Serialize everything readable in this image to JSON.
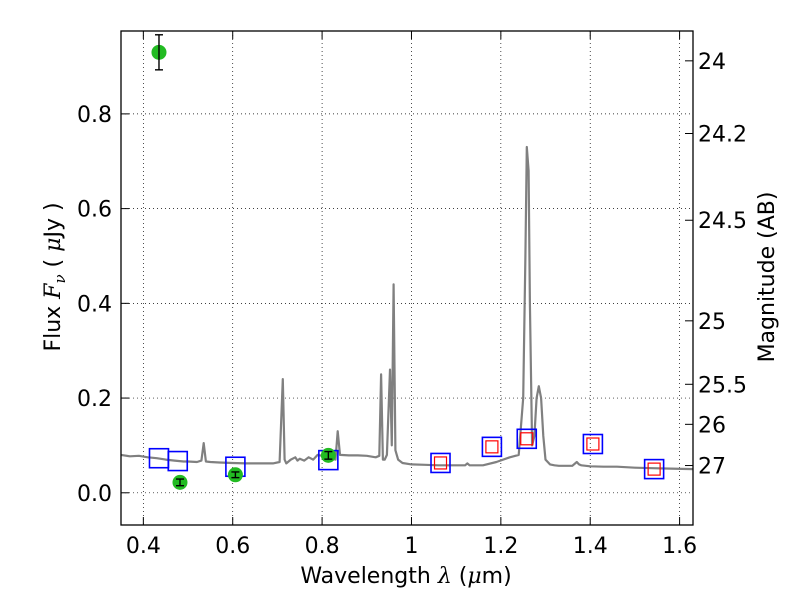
{
  "chart_data": {
    "type": "line",
    "xlabel": {
      "prefix": "Wavelength  ",
      "symbol": "λ",
      "open": " (",
      "unit": "μ",
      "suffix": "m)"
    },
    "ylabel": {
      "prefix": "Flux  ",
      "symbol": "F",
      "sub": "ν",
      "open": "  ( ",
      "unit": "μ",
      "suffix": "Jy )"
    },
    "y2label": "Magnitude (AB)",
    "xlim": [
      0.35,
      1.63
    ],
    "ylim": [
      -0.068,
      0.975
    ],
    "grid": true,
    "x_ticks": [
      {
        "value": 0.4,
        "label": "0.4"
      },
      {
        "value": 0.6,
        "label": "0.6"
      },
      {
        "value": 0.8,
        "label": "0.8"
      },
      {
        "value": 1.0,
        "label": "1"
      },
      {
        "value": 1.2,
        "label": "1.2"
      },
      {
        "value": 1.4,
        "label": "1.4"
      },
      {
        "value": 1.6,
        "label": "1.6"
      }
    ],
    "y_ticks": [
      {
        "value": 0.0,
        "label": "0.0"
      },
      {
        "value": 0.2,
        "label": "0.2"
      },
      {
        "value": 0.4,
        "label": "0.4"
      },
      {
        "value": 0.6,
        "label": "0.6"
      },
      {
        "value": 0.8,
        "label": "0.8"
      }
    ],
    "y2_ticks": [
      {
        "value": 24.0,
        "label": "24"
      },
      {
        "value": 24.2,
        "label": "24.2"
      },
      {
        "value": 24.5,
        "label": "24.5"
      },
      {
        "value": 25.0,
        "label": "25"
      },
      {
        "value": 25.5,
        "label": "25.5"
      },
      {
        "value": 26.0,
        "label": "26"
      },
      {
        "value": 27.0,
        "label": "27"
      }
    ],
    "model_spectrum": {
      "color": "#808080",
      "x": [
        0.35,
        0.37,
        0.39,
        0.41,
        0.43,
        0.45,
        0.47,
        0.49,
        0.5,
        0.52,
        0.53,
        0.535,
        0.54,
        0.55,
        0.57,
        0.6,
        0.63,
        0.66,
        0.69,
        0.705,
        0.712,
        0.716,
        0.72,
        0.73,
        0.74,
        0.745,
        0.75,
        0.76,
        0.77,
        0.78,
        0.79,
        0.8,
        0.82,
        0.83,
        0.835,
        0.84,
        0.86,
        0.88,
        0.9,
        0.92,
        0.928,
        0.932,
        0.936,
        0.94,
        0.945,
        0.952,
        0.956,
        0.96,
        0.964,
        0.97,
        0.98,
        1.0,
        1.03,
        1.06,
        1.09,
        1.12,
        1.125,
        1.13,
        1.16,
        1.19,
        1.22,
        1.24,
        1.25,
        1.255,
        1.258,
        1.262,
        1.265,
        1.27,
        1.275,
        1.28,
        1.285,
        1.29,
        1.295,
        1.3,
        1.31,
        1.32,
        1.33,
        1.36,
        1.37,
        1.375,
        1.38,
        1.4,
        1.43,
        1.46,
        1.5,
        1.54,
        1.58,
        1.63
      ],
      "y": [
        0.08,
        0.077,
        0.078,
        0.075,
        0.073,
        0.07,
        0.068,
        0.066,
        0.066,
        0.065,
        0.068,
        0.105,
        0.066,
        0.065,
        0.064,
        0.063,
        0.062,
        0.062,
        0.062,
        0.065,
        0.24,
        0.07,
        0.062,
        0.07,
        0.075,
        0.068,
        0.072,
        0.068,
        0.075,
        0.07,
        0.08,
        0.078,
        0.072,
        0.07,
        0.13,
        0.08,
        0.079,
        0.079,
        0.078,
        0.075,
        0.078,
        0.25,
        0.07,
        0.07,
        0.08,
        0.26,
        0.1,
        0.44,
        0.09,
        0.07,
        0.063,
        0.06,
        0.059,
        0.058,
        0.058,
        0.058,
        0.062,
        0.058,
        0.058,
        0.065,
        0.075,
        0.08,
        0.2,
        0.5,
        0.73,
        0.68,
        0.4,
        0.1,
        0.12,
        0.2,
        0.225,
        0.2,
        0.12,
        0.07,
        0.06,
        0.058,
        0.057,
        0.057,
        0.065,
        0.06,
        0.058,
        0.056,
        0.055,
        0.055,
        0.053,
        0.052,
        0.051,
        0.05
      ]
    },
    "series": [
      {
        "marker": "square",
        "color": "#0000ff",
        "points": [
          {
            "x": 0.435,
            "y": 0.073
          },
          {
            "x": 0.477,
            "y": 0.067
          },
          {
            "x": 0.606,
            "y": 0.055
          },
          {
            "x": 0.814,
            "y": 0.069
          },
          {
            "x": 1.065,
            "y": 0.063
          },
          {
            "x": 1.18,
            "y": 0.097
          },
          {
            "x": 1.258,
            "y": 0.114
          },
          {
            "x": 1.406,
            "y": 0.103
          },
          {
            "x": 1.543,
            "y": 0.05
          }
        ]
      },
      {
        "marker": "square",
        "color": "#ff0000",
        "points": [
          {
            "x": 1.065,
            "y": 0.063
          },
          {
            "x": 1.18,
            "y": 0.097
          },
          {
            "x": 1.258,
            "y": 0.114
          },
          {
            "x": 1.406,
            "y": 0.103
          },
          {
            "x": 1.543,
            "y": 0.05
          }
        ]
      },
      {
        "marker": "circle",
        "color": "#22bb22",
        "points": [
          {
            "x": 0.435,
            "y": 0.93,
            "err": 0.037
          },
          {
            "x": 0.482,
            "y": 0.022,
            "err": 0.007
          },
          {
            "x": 0.606,
            "y": 0.038,
            "err": 0.006
          },
          {
            "x": 0.814,
            "y": 0.079,
            "err": 0.008
          }
        ]
      }
    ]
  }
}
